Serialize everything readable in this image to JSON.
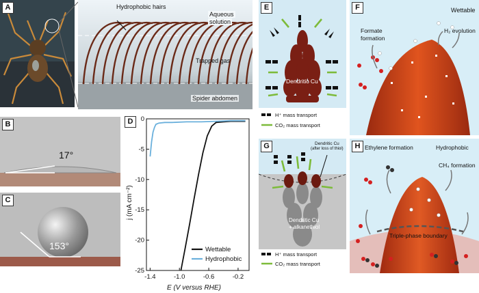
{
  "panels": {
    "a": {
      "label": "A"
    },
    "a_zoom": {
      "hairs": "Hydrophobic hairs",
      "aqueous_1": "Aqueous",
      "aqueous_2": "solution",
      "gas": "Trapped gas",
      "abdomen": "Spider abdomen"
    },
    "b": {
      "label": "B",
      "angle": "17°"
    },
    "c": {
      "label": "C",
      "angle": "153°"
    },
    "d": {
      "label": "D"
    },
    "e": {
      "label": "E",
      "tip": "Dendritic Cu",
      "legend_h": "H⁺ mass transport",
      "legend_co2": "CO₂ mass transport"
    },
    "f": {
      "label": "F",
      "title": "Wettable",
      "formate_1": "Formate",
      "formate_2": "formation",
      "h2": "H₂ evolution"
    },
    "g": {
      "label": "G",
      "note_1": "Dendritic Cu",
      "note_2": "(after loss of thiol)",
      "tip_1": "Dendritic Cu",
      "tip_2": "+ alkanethiol",
      "legend_h": "H⁺ mass transport",
      "legend_co2": "CO₂ mass transport"
    },
    "h": {
      "label": "H",
      "title": "Hydrophobic",
      "ethylene": "Ethylene formation",
      "ch4": "CH₄ formation",
      "boundary": "Triple-phase boundary"
    }
  },
  "chart_data": {
    "type": "line",
    "xlabel": "E (V versus RHE)",
    "ylabel": "j (mA cm⁻²)",
    "xlim": [
      -1.45,
      -0.05
    ],
    "ylim": [
      -25,
      0
    ],
    "xticks": [
      "-1.4",
      "-1.0",
      "-0.6",
      "-0.2"
    ],
    "xtick_values": [
      -1.4,
      -1.0,
      -0.6,
      -0.2
    ],
    "yticks": [
      "0",
      "-5",
      "-10",
      "-15",
      "-20",
      "-25"
    ],
    "ytick_values": [
      0,
      -5,
      -10,
      -15,
      -20,
      -25
    ],
    "legend_position": "bottom-right",
    "series": [
      {
        "name": "Wettable",
        "color": "#111111",
        "x": [
          -0.98,
          -0.92,
          -0.86,
          -0.8,
          -0.74,
          -0.68,
          -0.62,
          -0.56,
          -0.5,
          -0.4,
          -0.3,
          -0.2,
          -0.1
        ],
        "y": [
          -25,
          -21.2,
          -17.3,
          -13.2,
          -9.2,
          -5.6,
          -2.8,
          -1.2,
          -0.6,
          -0.5,
          -0.4,
          -0.4,
          -0.4
        ]
      },
      {
        "name": "Hydrophobic",
        "color": "#6ab0dc",
        "x": [
          -1.4,
          -1.38,
          -1.36,
          -1.34,
          -1.32,
          -1.28,
          -1.2,
          -1.1,
          -0.9,
          -0.7,
          -0.5,
          -0.3,
          -0.1
        ],
        "y": [
          -6.2,
          -3.8,
          -2.2,
          -1.4,
          -0.9,
          -0.7,
          -0.6,
          -0.6,
          -0.5,
          -0.5,
          -0.4,
          -0.3,
          -0.3
        ]
      }
    ]
  }
}
